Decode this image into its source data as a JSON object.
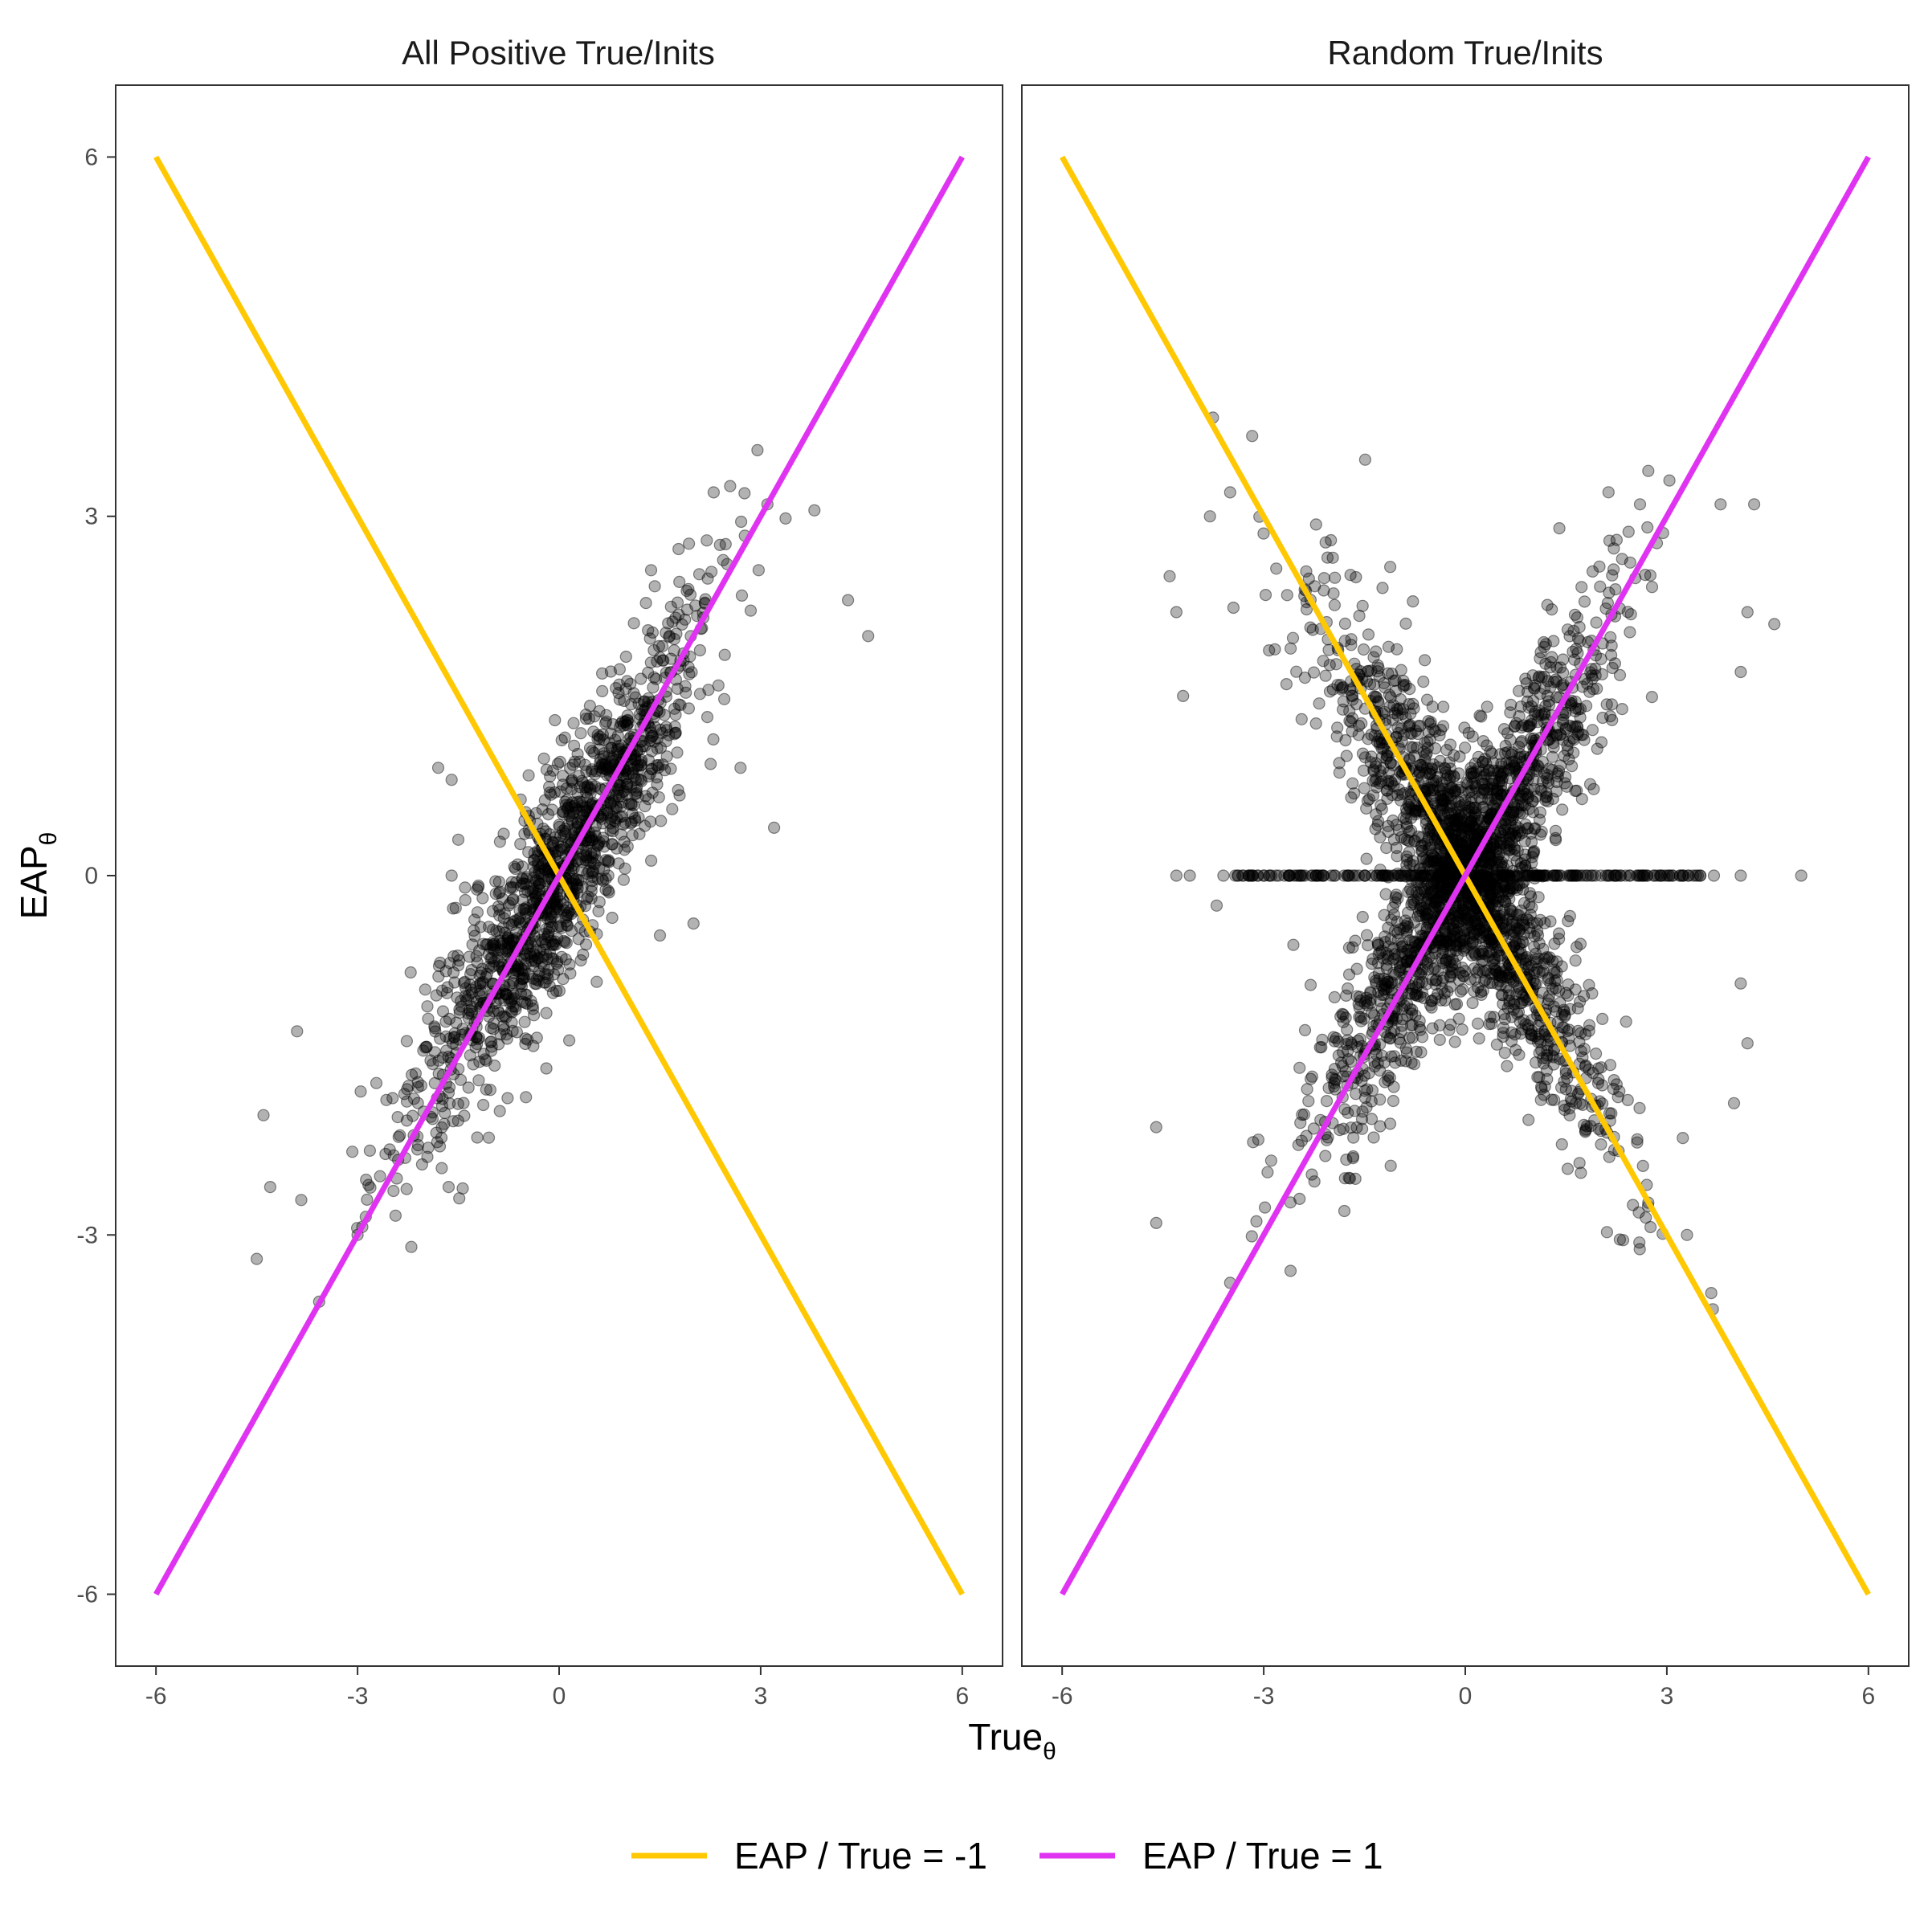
{
  "chart_data": {
    "type": "scatter",
    "xlabel": "True",
    "xlabel_subscript": "θ",
    "ylabel": "EAP",
    "ylabel_subscript": "θ",
    "xlim": [
      -6.6,
      6.6
    ],
    "ylim": [
      -6.6,
      6.6
    ],
    "x_ticks": [
      -6,
      -3,
      0,
      3,
      6
    ],
    "y_ticks": [
      -6,
      -3,
      0,
      3,
      6
    ],
    "grid": false,
    "legend_position": "bottom",
    "point_color": "#000000",
    "point_alpha": 0.3,
    "panels": [
      {
        "title": "All Positive True/Inits",
        "description": "dense cloud along y = x",
        "clusters": [
          {
            "kind": "band",
            "x_from": -3.6,
            "x_to": 3.6,
            "slope": 0.93,
            "spread": 0.55
          }
        ],
        "outliers": [
          [
            -4.5,
            -3.2
          ],
          [
            -4.4,
            -2.0
          ],
          [
            -4.3,
            -2.6
          ],
          [
            -3.9,
            -1.3
          ],
          [
            -1.6,
            0.8
          ],
          [
            -1.6,
            0.0
          ],
          [
            -1.4,
            -0.1
          ],
          [
            -1.5,
            0.3
          ],
          [
            3.1,
            3.1
          ],
          [
            3.8,
            3.05
          ],
          [
            4.6,
            2.0
          ],
          [
            4.3,
            2.3
          ],
          [
            3.2,
            0.4
          ],
          [
            2.7,
            0.9
          ],
          [
            2.0,
            -0.4
          ],
          [
            1.5,
            -0.5
          ],
          [
            -2.2,
            -3.1
          ],
          [
            -3.0,
            -3.0
          ],
          [
            -1.8,
            0.9
          ],
          [
            2.3,
            3.2
          ]
        ]
      },
      {
        "title": "Random True/Inits",
        "description": "two bands along y = x and y = -x, plus a row at y = 0",
        "clusters": [
          {
            "kind": "band",
            "x_from": -3.6,
            "x_to": 3.6,
            "slope": 0.93,
            "spread": 0.55
          },
          {
            "kind": "band",
            "x_from": -3.6,
            "x_to": 3.6,
            "slope": -0.93,
            "spread": 0.55
          },
          {
            "kind": "row",
            "x_from": -3.5,
            "x_to": 3.5,
            "y": 0.0
          }
        ],
        "outliers": [
          [
            -4.3,
            0.0
          ],
          [
            -4.1,
            0.0
          ],
          [
            -3.6,
            0.0
          ],
          [
            3.7,
            0.0
          ],
          [
            4.1,
            0.0
          ],
          [
            5.0,
            0.0
          ],
          [
            -3.7,
            -0.25
          ],
          [
            -4.6,
            -2.9
          ],
          [
            -4.6,
            -2.1
          ],
          [
            -4.4,
            2.5
          ],
          [
            -4.3,
            2.2
          ],
          [
            -3.8,
            3.0
          ],
          [
            -3.5,
            3.2
          ],
          [
            3.8,
            3.1
          ],
          [
            4.3,
            3.1
          ],
          [
            4.6,
            2.1
          ],
          [
            4.2,
            2.2
          ],
          [
            4.2,
            -1.4
          ],
          [
            4.1,
            -0.9
          ],
          [
            4.0,
            -1.9
          ],
          [
            3.3,
            -3.0
          ],
          [
            -2.6,
            -3.3
          ],
          [
            -3.5,
            -3.4
          ],
          [
            -2.0,
            2.8
          ],
          [
            2.6,
            3.1
          ],
          [
            1.4,
            2.9
          ],
          [
            -1.8,
            -2.8
          ],
          [
            1.7,
            -2.4
          ],
          [
            -4.2,
            1.5
          ],
          [
            4.1,
            1.7
          ]
        ]
      }
    ],
    "series": [
      {
        "name": "EAP / True = -1",
        "color": "#FFC800",
        "x": [
          -6,
          6
        ],
        "y": [
          6,
          -6
        ]
      },
      {
        "name": "EAP / True = 1",
        "color": "#E033F2",
        "x": [
          -6,
          6
        ],
        "y": [
          -6,
          6
        ]
      }
    ]
  }
}
